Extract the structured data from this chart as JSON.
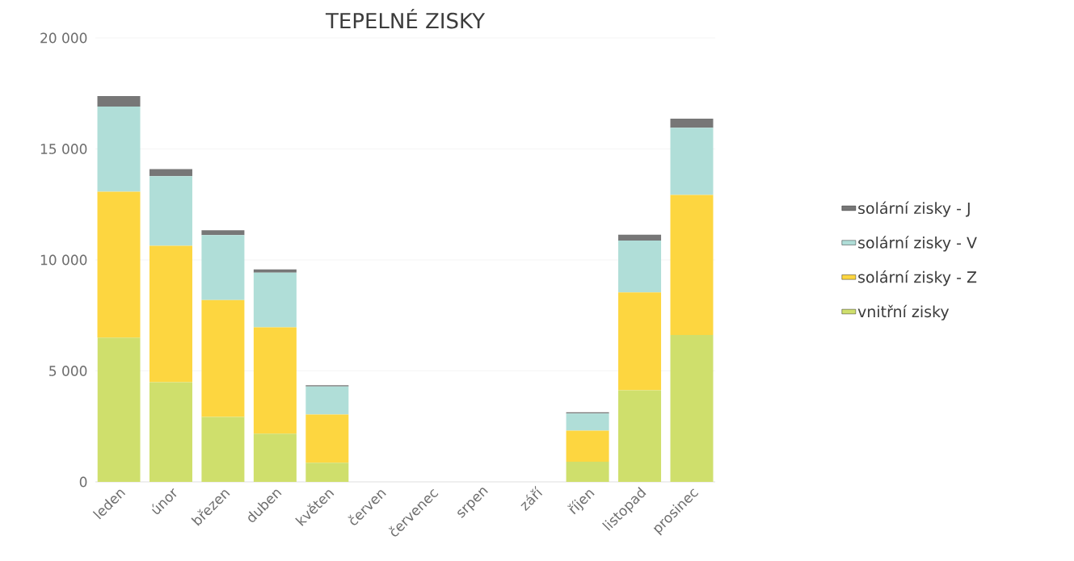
{
  "chart_data": {
    "type": "bar",
    "title": "TEPELNÉ ZISKY",
    "stacked": true,
    "categories": [
      "leden",
      "únor",
      "březen",
      "duben",
      "květen",
      "červen",
      "červenec",
      "srpen",
      "září",
      "říjen",
      "listopad",
      "prosinec"
    ],
    "series": [
      {
        "name": "vnitřní zisky",
        "color": "#cfdf6c",
        "values": [
          6500,
          4490,
          2930,
          2170,
          860,
          0,
          0,
          0,
          0,
          910,
          4130,
          6620
        ]
      },
      {
        "name": "solární zisky - Z",
        "color": "#fdd640",
        "values": [
          6570,
          6150,
          5260,
          4790,
          2180,
          0,
          0,
          0,
          0,
          1400,
          4410,
          6310
        ]
      },
      {
        "name": "solární zisky - V",
        "color": "#b0ded8",
        "values": [
          3840,
          3130,
          2930,
          2470,
          1260,
          0,
          0,
          0,
          0,
          770,
          2330,
          3020
        ]
      },
      {
        "name": "solární zisky - J",
        "color": "#777777",
        "values": [
          470,
          320,
          220,
          140,
          50,
          0,
          0,
          0,
          0,
          60,
          270,
          410
        ]
      }
    ],
    "ylim": [
      0,
      20000
    ],
    "yticks": [
      0,
      {
        "value": 5000,
        "label": "5 000"
      },
      {
        "value": 10000,
        "label": "10 000"
      },
      {
        "value": 15000,
        "label": "15 000"
      },
      {
        "value": 20000,
        "label": "20 000"
      }
    ],
    "grid": "y",
    "legend": "right"
  }
}
